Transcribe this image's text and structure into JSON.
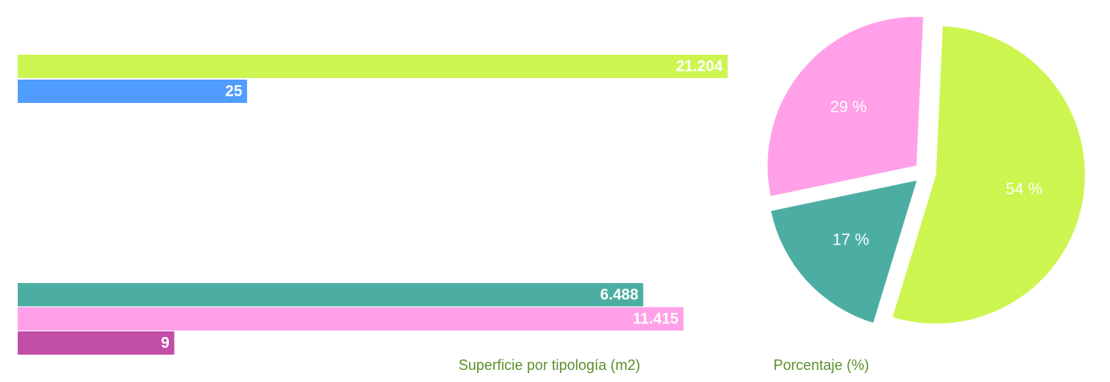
{
  "chart_data": [
    {
      "type": "bar",
      "orientation": "horizontal",
      "title": "Superficie por tipología (m2)",
      "values": [
        21204,
        25,
        6488,
        11415,
        9
      ],
      "value_labels": [
        "21.204",
        "25",
        "6.488",
        "11.415",
        "9"
      ],
      "colors": [
        "#ccf550",
        "#519cff",
        "#4caea3",
        "#ffa0e8",
        "#c24ea8"
      ],
      "log_scale": true,
      "xlim": [
        1,
        100000
      ]
    },
    {
      "type": "pie",
      "title": "Porcentaje (%)",
      "values": [
        54,
        17,
        29
      ],
      "value_labels": [
        "54 %",
        "17 %",
        "29 %"
      ],
      "colors": [
        "#ccf550",
        "#4caea3",
        "#ffa0e8"
      ]
    }
  ]
}
